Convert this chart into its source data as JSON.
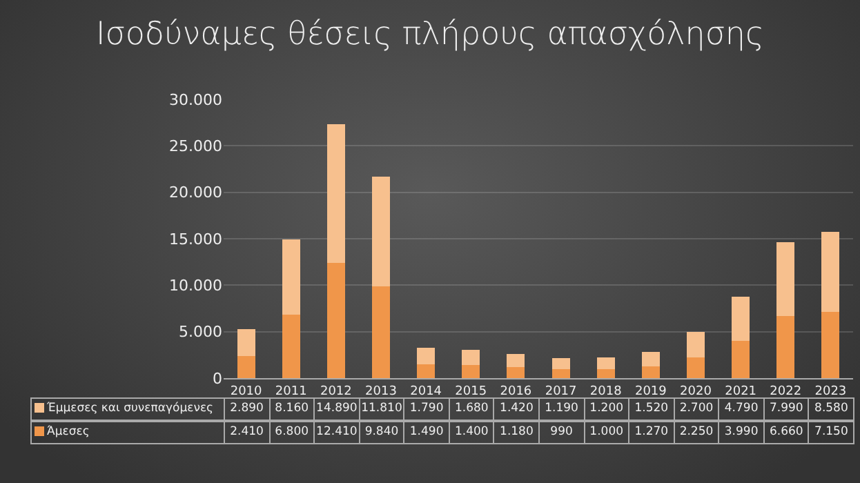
{
  "chart_data": {
    "type": "bar",
    "title": "Ισοδύναμες θέσεις πλήρους απασχόλησης",
    "categories": [
      "2010",
      "2011",
      "2012",
      "2013",
      "2014",
      "2015",
      "2016",
      "2017",
      "2018",
      "2019",
      "2020",
      "2021",
      "2022",
      "2023"
    ],
    "stacked": true,
    "series": [
      {
        "name": "Άμεσες",
        "color": "#f0964a",
        "values": [
          2410,
          6800,
          12410,
          9840,
          1490,
          1400,
          1180,
          990,
          1000,
          1270,
          2250,
          3990,
          6660,
          7150
        ],
        "value_labels": [
          "2.410",
          "6.800",
          "12.410",
          "9.840",
          "1.490",
          "1.400",
          "1.180",
          "990",
          "1.000",
          "1.270",
          "2.250",
          "3.990",
          "6.660",
          "7.150"
        ]
      },
      {
        "name": "Έμμεσες και συνεπαγόμενες",
        "color": "#f7c08e",
        "values": [
          2890,
          8160,
          14890,
          11810,
          1790,
          1680,
          1420,
          1190,
          1200,
          1520,
          2700,
          4790,
          7990,
          8580
        ],
        "value_labels": [
          "2.890",
          "8.160",
          "14.890",
          "11.810",
          "1.790",
          "1.680",
          "1.420",
          "1.190",
          "1.200",
          "1.520",
          "2.700",
          "4.790",
          "7.990",
          "8.580"
        ]
      }
    ],
    "ylim": [
      0,
      30000
    ],
    "yticks": [
      {
        "value": 0,
        "label": "0"
      },
      {
        "value": 5000,
        "label": "5.000"
      },
      {
        "value": 10000,
        "label": "10.000"
      },
      {
        "value": 15000,
        "label": "15.000"
      },
      {
        "value": 20000,
        "label": "20.000"
      },
      {
        "value": 25000,
        "label": "25.000"
      },
      {
        "value": 30000,
        "label": "30.000"
      }
    ],
    "grid": "y",
    "legend": "bottom"
  }
}
